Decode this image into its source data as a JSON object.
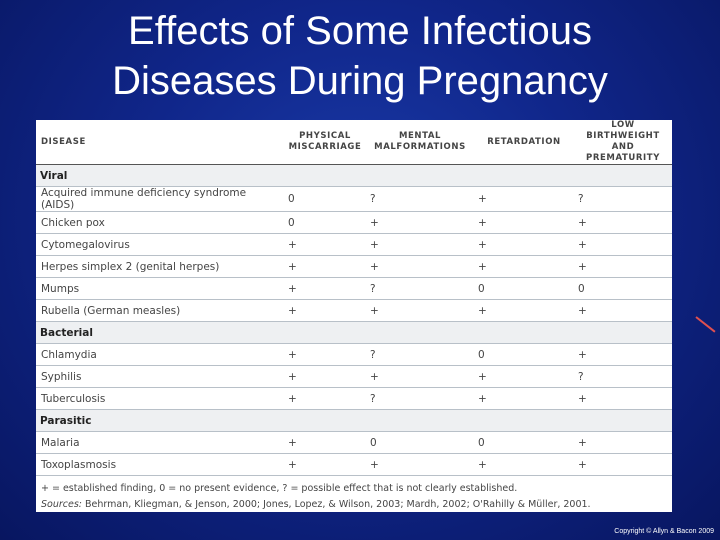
{
  "slide": {
    "title_line1": "Effects of Some Infectious",
    "title_line2": "Diseases During Pregnancy",
    "copyright": "Copyright © Allyn & Bacon 2009"
  },
  "table": {
    "headers": [
      "DISEASE",
      "PHYSICAL MISCARRIAGE",
      "MENTAL MALFORMATIONS",
      "RETARDATION",
      "LOW BIRTHWEIGHT AND PREMATURITY"
    ],
    "sections": [
      {
        "name": "Viral",
        "rows": [
          [
            "Acquired immune deficiency syndrome (AIDS)",
            "0",
            "?",
            "+",
            "?"
          ],
          [
            "Chicken pox",
            "0",
            "+",
            "+",
            "+"
          ],
          [
            "Cytomegalovirus",
            "+",
            "+",
            "+",
            "+"
          ],
          [
            "Herpes simplex 2 (genital herpes)",
            "+",
            "+",
            "+",
            "+"
          ],
          [
            "Mumps",
            "+",
            "?",
            "0",
            "0"
          ],
          [
            "Rubella (German measles)",
            "+",
            "+",
            "+",
            "+"
          ]
        ]
      },
      {
        "name": "Bacterial",
        "rows": [
          [
            "Chlamydia",
            "+",
            "?",
            "0",
            "+"
          ],
          [
            "Syphilis",
            "+",
            "+",
            "+",
            "?"
          ],
          [
            "Tuberculosis",
            "+",
            "?",
            "+",
            "+"
          ]
        ]
      },
      {
        "name": "Parasitic",
        "rows": [
          [
            "Malaria",
            "+",
            "0",
            "0",
            "+"
          ],
          [
            "Toxoplasmosis",
            "+",
            "+",
            "+",
            "+"
          ]
        ]
      }
    ],
    "legend": "+ = established finding, 0 = no present evidence, ? = possible effect that is not clearly established.",
    "sources_label": "Sources:",
    "sources_text": "Behrman, Kliegman, & Jenson, 2000; Jones, Lopez, & Wilson, 2003; Mardh, 2002; O'Rahilly & Müller, 2001."
  }
}
